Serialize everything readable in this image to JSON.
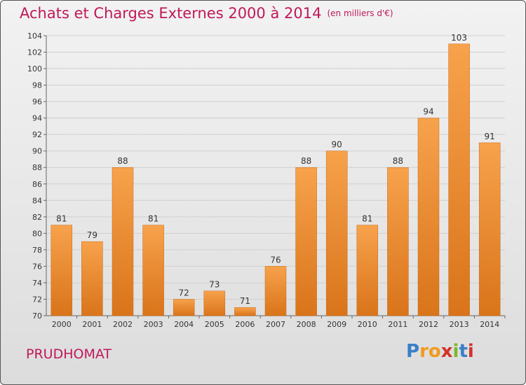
{
  "header": {
    "title": "Achats et Charges Externes 2000 à 2014",
    "unit": "(en milliers d'€)"
  },
  "footer": {
    "commune": "PRUDHOMAT",
    "logo_letters": [
      "P",
      "r",
      "o",
      "x",
      "i",
      "t",
      "i"
    ],
    "logo_colors": [
      "#3a7fc7",
      "#f29a1e",
      "#f29a1e",
      "#d6302a",
      "#7ab929",
      "#3a7fc7",
      "#d6302a"
    ]
  },
  "chart_data": {
    "type": "bar",
    "title": "Achats et Charges Externes 2000 à 2014",
    "subtitle": "(en milliers d'€)",
    "xlabel": "",
    "ylabel": "",
    "categories": [
      "2000",
      "2001",
      "2002",
      "2003",
      "2004",
      "2005",
      "2006",
      "2007",
      "2008",
      "2009",
      "2010",
      "2011",
      "2012",
      "2013",
      "2014"
    ],
    "values": [
      81,
      79,
      88,
      81,
      72,
      73,
      71,
      76,
      88,
      90,
      81,
      88,
      94,
      103,
      91
    ],
    "ylim": [
      70,
      104
    ],
    "yticks": [
      70,
      72,
      74,
      76,
      78,
      80,
      82,
      84,
      86,
      88,
      90,
      92,
      94,
      96,
      98,
      100,
      102,
      104
    ],
    "grid": true,
    "bar_color": "#f0923a",
    "legend": "none"
  }
}
